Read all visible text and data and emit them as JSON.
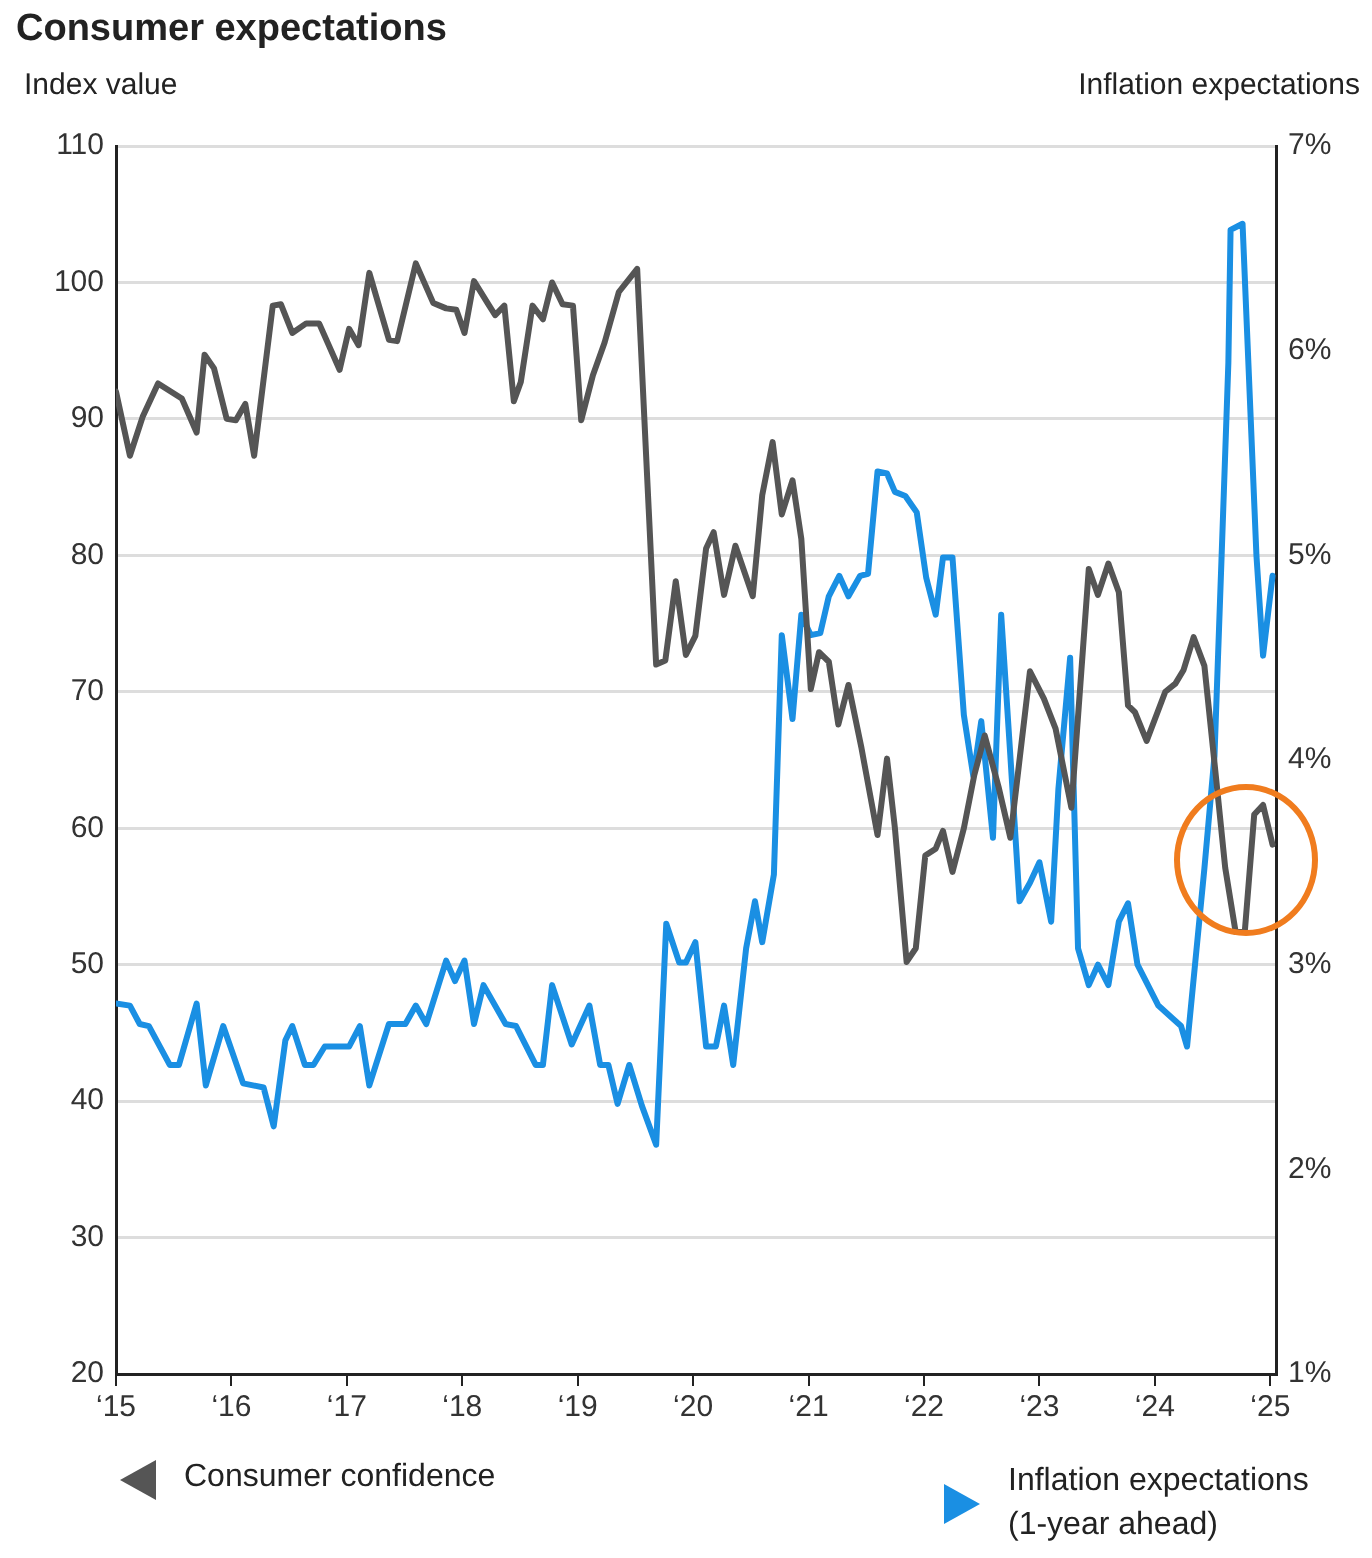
{
  "chart_data": {
    "type": "line",
    "title": "Consumer expectations",
    "ylabel": "Index value",
    "y2label": "Inflation expectations",
    "xlim": [
      "2015-01-01",
      "2025-01-19"
    ],
    "xticks": [
      {
        "value": "2015-01-01",
        "label": "‘15"
      },
      {
        "value": "2016-01-01",
        "label": "‘16"
      },
      {
        "value": "2017-01-01",
        "label": "‘17"
      },
      {
        "value": "2018-01-01",
        "label": "‘18"
      },
      {
        "value": "2019-01-01",
        "label": "‘19"
      },
      {
        "value": "2020-01-01",
        "label": "‘20"
      },
      {
        "value": "2021-01-01",
        "label": "‘21"
      },
      {
        "value": "2022-01-01",
        "label": "‘22"
      },
      {
        "value": "2023-01-01",
        "label": "‘23"
      },
      {
        "value": "2024-01-01",
        "label": "‘24"
      },
      {
        "value": "2025-01-01",
        "label": "‘25"
      }
    ],
    "ylim": [
      20,
      110
    ],
    "yticks": [
      20,
      30,
      40,
      50,
      60,
      70,
      80,
      90,
      100,
      110
    ],
    "y2lim": [
      1,
      7
    ],
    "y2ticks": [
      {
        "value": 1,
        "label": "1%"
      },
      {
        "value": 2,
        "label": "2%"
      },
      {
        "value": 3,
        "label": "3%"
      },
      {
        "value": 4,
        "label": "4%"
      },
      {
        "value": 5,
        "label": "5%"
      },
      {
        "value": 6,
        "label": "6%"
      },
      {
        "value": 7,
        "label": "7%"
      }
    ],
    "grid": "y",
    "legend": "bottom",
    "marker": "none",
    "line_style": "solid",
    "series": [
      {
        "name": "Consumer confidence",
        "color": "#555555",
        "axis": "y",
        "x": [
          "2015-01-01",
          "2015-02-14",
          "2015-03-27",
          "2015-05-14",
          "2015-07-28",
          "2015-09-13",
          "2015-10-08",
          "2015-11-07",
          "2015-12-17",
          "2016-01-15",
          "2016-02-14",
          "2016-03-13",
          "2016-05-11",
          "2016-06-06",
          "2016-07-12",
          "2016-08-25",
          "2016-10-05",
          "2016-12-09",
          "2017-01-08",
          "2017-02-07",
          "2017-03-13",
          "2017-05-14",
          "2017-06-09",
          "2017-08-07",
          "2017-10-01",
          "2017-11-11",
          "2017-12-13",
          "2018-01-08",
          "2018-02-07",
          "2018-03-27",
          "2018-04-15",
          "2018-05-14",
          "2018-06-13",
          "2018-07-05",
          "2018-08-11",
          "2018-09-13",
          "2018-10-12",
          "2018-11-14",
          "2018-12-17",
          "2019-01-12",
          "2019-02-18",
          "2019-03-27",
          "2019-05-11",
          "2019-07-08",
          "2019-09-06",
          "2019-10-05",
          "2019-11-07",
          "2019-12-09",
          "2020-01-08",
          "2020-02-11",
          "2020-03-06",
          "2020-04-08",
          "2020-05-14",
          "2020-07-08",
          "2020-08-07",
          "2020-09-09",
          "2020-10-08",
          "2020-11-11",
          "2020-12-09",
          "2021-01-08",
          "2021-02-03",
          "2021-03-06",
          "2021-04-05",
          "2021-05-07",
          "2021-06-17",
          "2021-08-07",
          "2021-09-06",
          "2021-10-01",
          "2021-11-07",
          "2021-12-06",
          "2022-01-05",
          "2022-02-07",
          "2022-03-02",
          "2022-04-01",
          "2022-05-07",
          "2022-06-09",
          "2022-07-12",
          "2022-08-25",
          "2022-10-01",
          "2022-12-02",
          "2023-01-15",
          "2023-02-21",
          "2023-04-12",
          "2023-06-06",
          "2023-07-05",
          "2023-08-07",
          "2023-09-09",
          "2023-10-08",
          "2023-10-30",
          "2023-12-06",
          "2024-02-03",
          "2024-03-06",
          "2024-04-01",
          "2024-05-03",
          "2024-06-06",
          "2024-07-12",
          "2024-08-11",
          "2024-09-13",
          "2024-10-12",
          "2024-11-11",
          "2024-12-09",
          "2025-01-08"
        ],
        "values": [
          92,
          87.3,
          90.2,
          92.6,
          91.5,
          89,
          94.7,
          93.7,
          90,
          89.9,
          91.1,
          87.3,
          98.3,
          98.4,
          96.3,
          97,
          97,
          93.6,
          96.6,
          95.4,
          100.7,
          95.8,
          95.7,
          101.4,
          98.5,
          98.1,
          98,
          96.3,
          100.1,
          98.3,
          97.6,
          98.3,
          91.3,
          92.7,
          98.3,
          97.3,
          100,
          98.4,
          98.3,
          89.9,
          93.2,
          95.6,
          99.3,
          101,
          72,
          72.3,
          78.1,
          72.7,
          74.1,
          80.5,
          81.7,
          77.1,
          80.7,
          77,
          84.4,
          88.3,
          83,
          85.5,
          81.2,
          70.2,
          72.9,
          72.2,
          67.6,
          70.5,
          65.9,
          59.5,
          65.1,
          60,
          50.2,
          51.2,
          58,
          58.5,
          59.8,
          56.8,
          60,
          63.9,
          66.8,
          63,
          59.3,
          71.5,
          69.5,
          67.3,
          61.5,
          79,
          77.1,
          79.4,
          77.3,
          69,
          68.5,
          66.4,
          70,
          70.6,
          71.6,
          74,
          71.9,
          63.9,
          57.1,
          52.4,
          52.4,
          61,
          61.7,
          58.8
        ]
      },
      {
        "name": "Inflation expectations (1-year ahead)",
        "color": "#1a8fe3",
        "axis": "y2",
        "x": [
          "2015-01-01",
          "2015-02-14",
          "2015-03-17",
          "2015-04-15",
          "2015-06-20",
          "2015-07-19",
          "2015-09-13",
          "2015-10-12",
          "2015-12-06",
          "2016-02-07",
          "2016-04-12",
          "2016-05-14",
          "2016-06-20",
          "2016-07-12",
          "2016-08-21",
          "2016-09-17",
          "2016-10-23",
          "2017-01-08",
          "2017-02-11",
          "2017-03-13",
          "2017-05-14",
          "2017-07-05",
          "2017-08-07",
          "2017-09-09",
          "2017-11-11",
          "2017-12-09",
          "2018-01-08",
          "2018-02-07",
          "2018-03-09",
          "2018-05-18",
          "2018-06-20",
          "2018-08-21",
          "2018-09-13",
          "2018-10-12",
          "2018-12-13",
          "2019-02-07",
          "2019-03-13",
          "2019-04-08",
          "2019-05-07",
          "2019-06-13",
          "2019-07-23",
          "2019-09-06",
          "2019-10-08",
          "2019-11-18",
          "2019-12-09",
          "2020-01-08",
          "2020-02-11",
          "2020-03-13",
          "2020-04-08",
          "2020-05-07",
          "2020-06-17",
          "2020-07-15",
          "2020-08-07",
          "2020-09-13",
          "2020-10-08",
          "2020-11-11",
          "2020-12-09",
          "2021-01-08",
          "2021-02-07",
          "2021-03-06",
          "2021-04-08",
          "2021-05-07",
          "2021-06-13",
          "2021-07-08",
          "2021-08-07",
          "2021-09-06",
          "2021-10-01",
          "2021-11-03",
          "2021-12-09",
          "2022-01-08",
          "2022-02-07",
          "2022-03-02",
          "2022-04-01",
          "2022-05-07",
          "2022-06-06",
          "2022-07-01",
          "2022-08-07",
          "2022-09-02",
          "2022-10-01",
          "2022-10-30",
          "2022-12-02",
          "2023-01-01",
          "2023-02-07",
          "2023-03-02",
          "2023-04-08",
          "2023-05-03",
          "2023-06-06",
          "2023-07-05",
          "2023-08-07",
          "2023-09-09",
          "2023-10-08",
          "2023-11-07",
          "2024-01-12",
          "2024-03-24",
          "2024-04-12",
          "2024-06-06",
          "2024-07-08",
          "2024-07-30",
          "2024-08-21",
          "2024-08-28",
          "2024-10-05",
          "2024-11-18",
          "2024-12-09",
          "2025-01-08"
        ],
        "values": [
          2.81,
          2.8,
          2.71,
          2.7,
          2.51,
          2.51,
          2.81,
          2.41,
          2.7,
          2.42,
          2.4,
          2.21,
          2.63,
          2.7,
          2.51,
          2.51,
          2.6,
          2.6,
          2.7,
          2.41,
          2.71,
          2.71,
          2.8,
          2.71,
          3.02,
          2.92,
          3.02,
          2.71,
          2.9,
          2.71,
          2.7,
          2.51,
          2.51,
          2.9,
          2.61,
          2.8,
          2.51,
          2.51,
          2.32,
          2.51,
          2.31,
          2.12,
          3.2,
          3.01,
          3.01,
          3.11,
          2.6,
          2.6,
          2.8,
          2.51,
          3.08,
          3.31,
          3.11,
          3.44,
          4.61,
          4.2,
          4.71,
          4.61,
          4.62,
          4.8,
          4.9,
          4.8,
          4.9,
          4.91,
          5.41,
          5.4,
          5.31,
          5.29,
          5.21,
          4.89,
          4.71,
          4.99,
          4.99,
          4.22,
          3.92,
          4.19,
          3.62,
          4.71,
          4.02,
          3.31,
          3.4,
          3.5,
          3.21,
          3.86,
          4.5,
          3.08,
          2.9,
          3.0,
          2.9,
          3.21,
          3.3,
          3.0,
          2.8,
          2.7,
          2.6,
          3.47,
          4.02,
          4.97,
          5.94,
          6.59,
          6.62,
          5.0,
          4.51,
          4.9
        ]
      }
    ]
  }
}
